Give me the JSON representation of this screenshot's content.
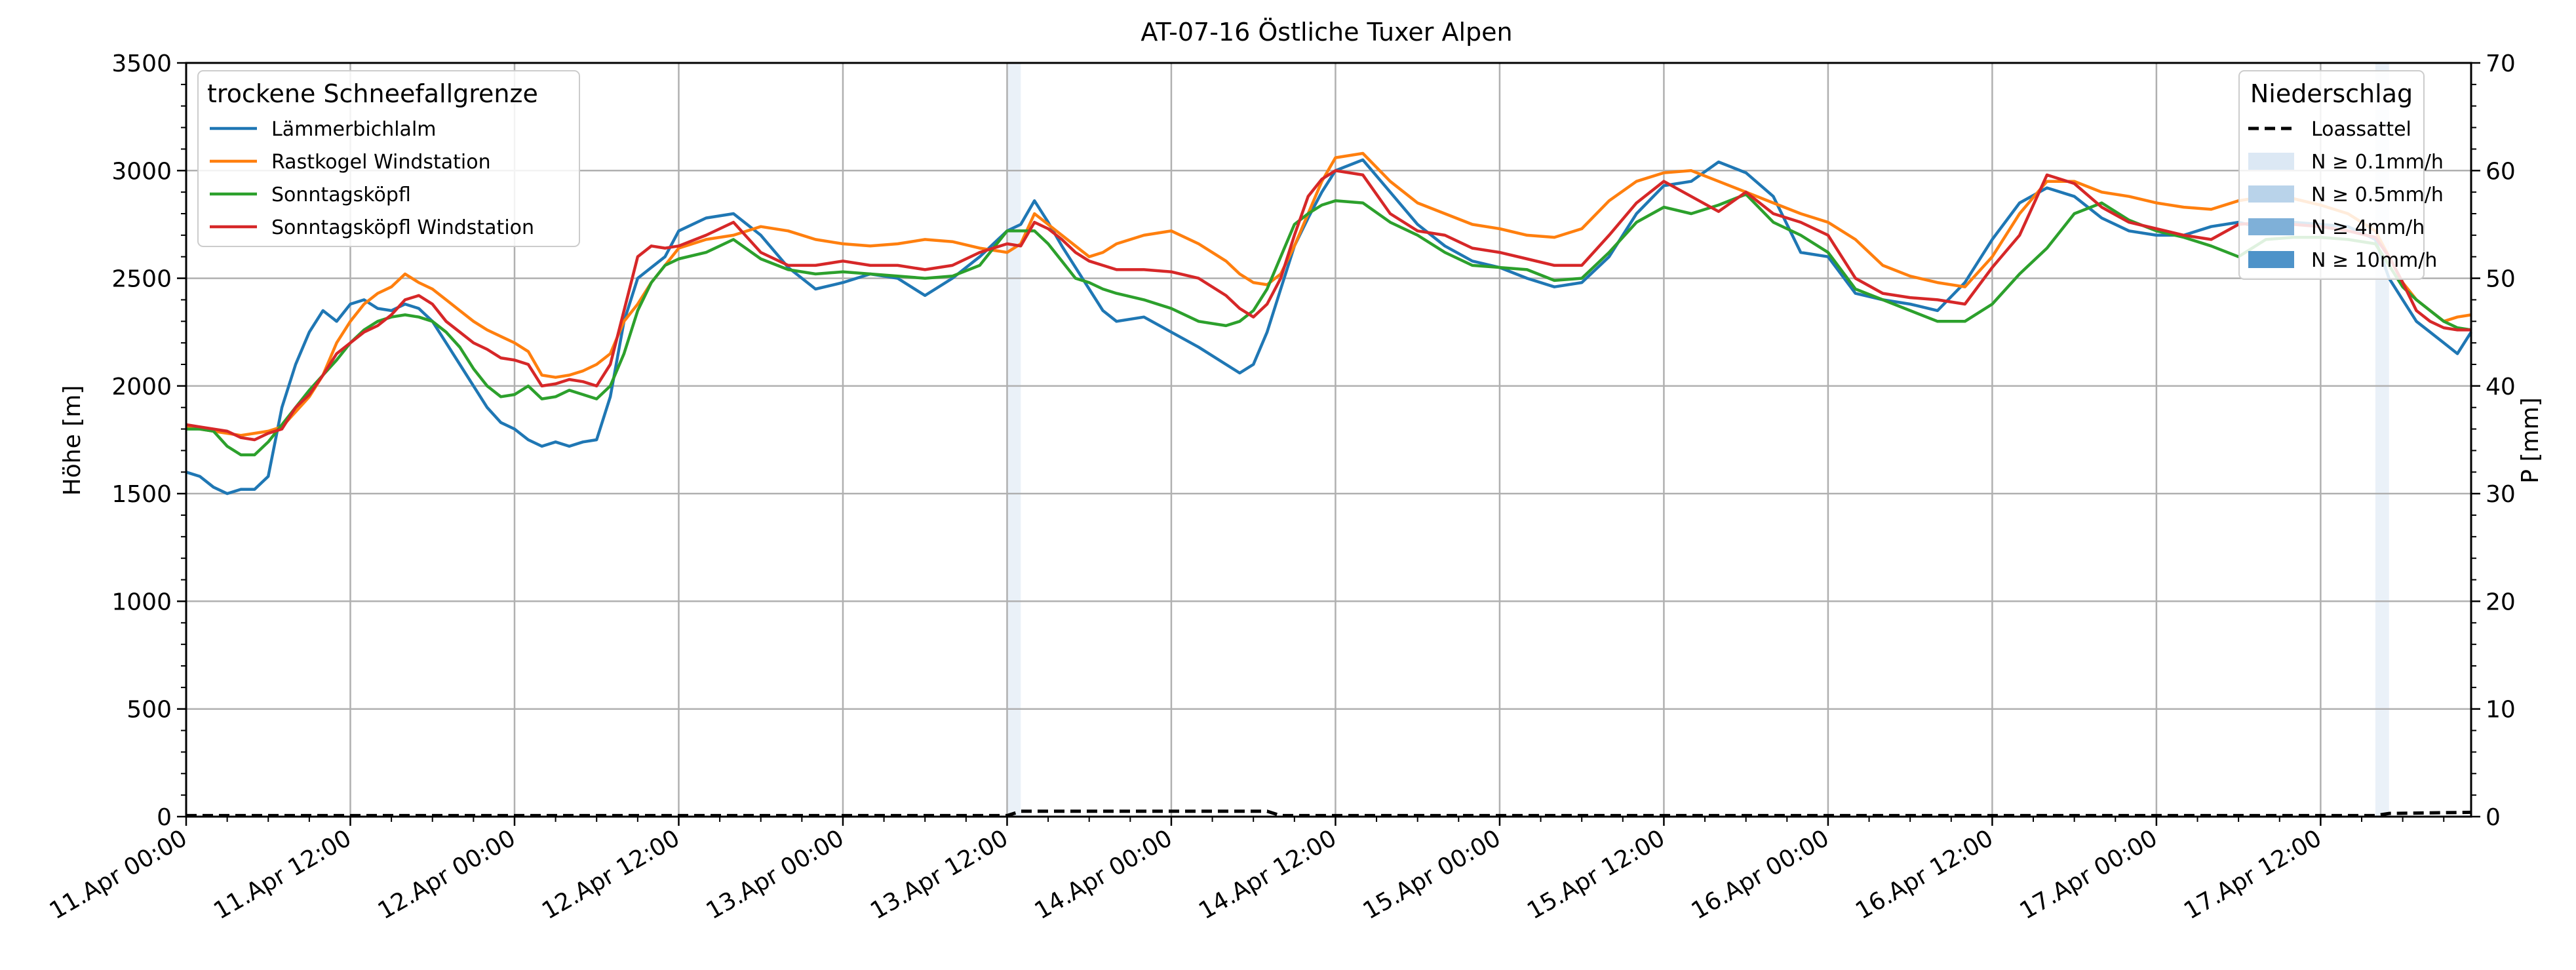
{
  "chart_data": {
    "type": "line",
    "title": "AT-07-16 Östliche Tuxer Alpen",
    "ylabel": "Höhe [m]",
    "y2label": "P [mm]",
    "ylim": [
      0,
      3500
    ],
    "y2lim": [
      0,
      70
    ],
    "yticks": [
      0,
      500,
      1000,
      1500,
      2000,
      2500,
      3000,
      3500
    ],
    "y2ticks": [
      0,
      10,
      20,
      30,
      40,
      50,
      60,
      70
    ],
    "xlim": [
      0,
      167
    ],
    "x_unit": "hours since 11.Apr 00:00",
    "xticks": [
      0,
      12,
      24,
      36,
      48,
      60,
      72,
      84,
      96,
      108,
      120,
      132,
      144,
      156
    ],
    "xtick_labels": [
      "11.Apr 00:00",
      "11.Apr 12:00",
      "12.Apr 00:00",
      "12.Apr 12:00",
      "13.Apr 00:00",
      "13.Apr 12:00",
      "14.Apr 00:00",
      "14.Apr 12:00",
      "15.Apr 00:00",
      "15.Apr 12:00",
      "16.Apr 00:00",
      "16.Apr 12:00",
      "17.Apr 00:00",
      "17.Apr 12:00"
    ],
    "grid": true,
    "legend_left": {
      "title": "trockene Schneefallgrenze",
      "placement": "top-left"
    },
    "legend_right": {
      "title": "Niederschlag",
      "placement": "top-right",
      "line_label": "Loassattel",
      "bands": [
        {
          "label": "N ≥ 0.1mm/h",
          "color": "#dce8f4"
        },
        {
          "label": "N ≥ 0.5mm/h",
          "color": "#b9d3ea"
        },
        {
          "label": "N ≥ 4mm/h",
          "color": "#7fb0d8"
        },
        {
          "label": "N ≥ 10mm/h",
          "color": "#4e93c9"
        }
      ]
    },
    "x_knots": [
      0,
      1,
      2,
      3,
      4,
      5,
      6,
      7,
      8,
      9,
      10,
      11,
      12,
      13,
      14,
      15,
      16,
      17,
      18,
      19,
      20,
      21,
      22,
      23,
      24,
      25,
      26,
      27,
      28,
      29,
      30,
      31,
      32,
      33,
      34,
      35,
      36,
      38,
      40,
      42,
      44,
      46,
      48,
      50,
      52,
      54,
      56,
      58,
      60,
      61,
      62,
      63,
      64,
      65,
      66,
      67,
      68,
      70,
      72,
      74,
      76,
      77,
      78,
      79,
      80,
      81,
      82,
      83,
      84,
      86,
      88,
      90,
      92,
      94,
      96,
      98,
      100,
      102,
      104,
      106,
      108,
      110,
      112,
      114,
      116,
      118,
      120,
      122,
      124,
      126,
      128,
      130,
      132,
      134,
      136,
      138,
      140,
      142,
      144,
      146,
      148,
      150,
      152,
      154,
      156,
      158,
      160,
      161,
      162,
      163,
      164,
      165,
      166,
      167
    ],
    "series": [
      {
        "name": "Lämmerbichlalm",
        "color": "#1f77b4",
        "values": [
          1600,
          1580,
          1530,
          1500,
          1520,
          1520,
          1580,
          1900,
          2100,
          2250,
          2350,
          2300,
          2380,
          2400,
          2360,
          2350,
          2380,
          2360,
          2300,
          2200,
          2100,
          2000,
          1900,
          1830,
          1800,
          1750,
          1720,
          1740,
          1720,
          1740,
          1750,
          1950,
          2300,
          2500,
          2550,
          2600,
          2720,
          2780,
          2800,
          2700,
          2550,
          2450,
          2480,
          2520,
          2500,
          2420,
          2500,
          2600,
          2720,
          2750,
          2860,
          2760,
          2650,
          2550,
          2450,
          2350,
          2300,
          2320,
          2250,
          2180,
          2100,
          2060,
          2100,
          2250,
          2450,
          2650,
          2780,
          2900,
          3000,
          3050,
          2900,
          2750,
          2650,
          2580,
          2550,
          2500,
          2460,
          2480,
          2600,
          2800,
          2930,
          2950,
          3040,
          2990,
          2880,
          2620,
          2600,
          2430,
          2400,
          2380,
          2350,
          2480,
          2680,
          2850,
          2920,
          2880,
          2780,
          2720,
          2700,
          2700,
          2740,
          2760,
          2730,
          2760,
          2750,
          2740,
          2680,
          2500,
          2400,
          2300,
          2250,
          2200,
          2150,
          2250
        ]
      },
      {
        "name": "Rastkogel Windstation",
        "color": "#ff7f0e",
        "values": [
          1810,
          1800,
          1790,
          1780,
          1770,
          1780,
          1790,
          1810,
          1880,
          1950,
          2050,
          2200,
          2300,
          2380,
          2430,
          2460,
          2520,
          2480,
          2450,
          2400,
          2350,
          2300,
          2260,
          2230,
          2200,
          2160,
          2050,
          2040,
          2050,
          2070,
          2100,
          2150,
          2300,
          2380,
          2480,
          2560,
          2640,
          2680,
          2700,
          2740,
          2720,
          2680,
          2660,
          2650,
          2660,
          2680,
          2670,
          2640,
          2620,
          2660,
          2800,
          2750,
          2700,
          2650,
          2600,
          2620,
          2660,
          2700,
          2720,
          2660,
          2580,
          2520,
          2480,
          2470,
          2520,
          2650,
          2800,
          2950,
          3060,
          3080,
          2950,
          2850,
          2800,
          2750,
          2730,
          2700,
          2690,
          2730,
          2860,
          2950,
          2990,
          3000,
          2950,
          2900,
          2850,
          2800,
          2760,
          2680,
          2560,
          2510,
          2480,
          2460,
          2600,
          2800,
          2950,
          2950,
          2900,
          2880,
          2850,
          2830,
          2820,
          2860,
          2880,
          2870,
          2840,
          2800,
          2720,
          2600,
          2480,
          2400,
          2350,
          2300,
          2320,
          2330
        ]
      },
      {
        "name": "Sonntagsköpfl",
        "color": "#2ca02c",
        "values": [
          1800,
          1800,
          1790,
          1720,
          1680,
          1680,
          1740,
          1820,
          1900,
          1980,
          2050,
          2120,
          2200,
          2260,
          2300,
          2320,
          2330,
          2320,
          2300,
          2250,
          2180,
          2080,
          2000,
          1950,
          1960,
          2000,
          1940,
          1950,
          1980,
          1960,
          1940,
          2000,
          2150,
          2350,
          2480,
          2560,
          2590,
          2620,
          2680,
          2590,
          2540,
          2520,
          2530,
          2520,
          2510,
          2500,
          2510,
          2560,
          2720,
          2720,
          2720,
          2660,
          2580,
          2500,
          2480,
          2450,
          2430,
          2400,
          2360,
          2300,
          2280,
          2300,
          2350,
          2450,
          2600,
          2750,
          2800,
          2840,
          2860,
          2850,
          2760,
          2700,
          2620,
          2560,
          2550,
          2540,
          2490,
          2500,
          2620,
          2760,
          2830,
          2800,
          2840,
          2890,
          2760,
          2700,
          2620,
          2450,
          2400,
          2350,
          2300,
          2300,
          2380,
          2520,
          2640,
          2800,
          2850,
          2770,
          2720,
          2690,
          2650,
          2600,
          2680,
          2690,
          2690,
          2680,
          2660,
          2560,
          2460,
          2400,
          2350,
          2300,
          2270,
          2260
        ]
      },
      {
        "name": "Sonntagsköpfl Windstation",
        "color": "#d62728",
        "values": [
          1820,
          1810,
          1800,
          1790,
          1760,
          1750,
          1780,
          1800,
          1900,
          1960,
          2050,
          2150,
          2200,
          2250,
          2280,
          2330,
          2400,
          2420,
          2380,
          2300,
          2250,
          2200,
          2170,
          2130,
          2120,
          2100,
          2000,
          2010,
          2030,
          2020,
          2000,
          2100,
          2350,
          2600,
          2650,
          2640,
          2650,
          2700,
          2760,
          2620,
          2560,
          2560,
          2580,
          2560,
          2560,
          2540,
          2560,
          2620,
          2660,
          2650,
          2760,
          2730,
          2680,
          2620,
          2580,
          2560,
          2540,
          2540,
          2530,
          2500,
          2420,
          2360,
          2320,
          2380,
          2500,
          2700,
          2880,
          2960,
          3000,
          2980,
          2800,
          2720,
          2700,
          2640,
          2620,
          2590,
          2560,
          2560,
          2700,
          2850,
          2950,
          2880,
          2810,
          2900,
          2800,
          2760,
          2700,
          2500,
          2430,
          2410,
          2400,
          2380,
          2550,
          2700,
          2980,
          2940,
          2830,
          2760,
          2730,
          2700,
          2680,
          2750,
          2760,
          2750,
          2740,
          2720,
          2690,
          2600,
          2480,
          2350,
          2300,
          2270,
          2260,
          2260
        ]
      }
    ],
    "precip_line": {
      "name": "Loassattel",
      "x": [
        0,
        60,
        61,
        79,
        80,
        160,
        161,
        167
      ],
      "values": [
        0.1,
        0.1,
        0.5,
        0.5,
        0.1,
        0.1,
        0.3,
        0.4
      ]
    },
    "precip_bands": [
      {
        "x_start": 60,
        "x_end": 61,
        "level": "N ≥ 0.1mm/h"
      },
      {
        "x_start": 160,
        "x_end": 161,
        "level": "N ≥ 0.1mm/h"
      }
    ]
  }
}
